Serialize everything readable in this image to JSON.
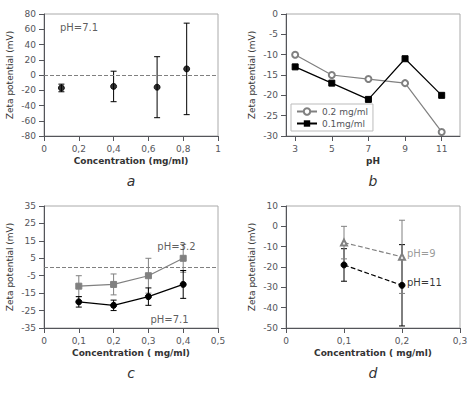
{
  "chart_data": [
    {
      "type": "scatter",
      "title": "a",
      "xlabel": "Concentration (mg/ml)",
      "ylabel": "Zeta potential (mV)",
      "x": [
        0.1,
        0.4,
        0.65,
        0.82
      ],
      "series": [
        {
          "values": [
            -17,
            -15,
            -16,
            8
          ],
          "yerr": [
            5,
            20,
            40,
            60
          ],
          "color": "black",
          "marker": "circle",
          "line_style": "none"
        }
      ],
      "xlim": [
        0,
        1
      ],
      "xticks": [
        0,
        {
          "value": 0.2,
          "label": "0,2"
        },
        {
          "value": 0.4,
          "label": "0,4"
        },
        {
          "value": 0.6,
          "label": "0,6"
        },
        {
          "value": 0.8,
          "label": "0,8"
        },
        1
      ],
      "ylim": [
        -80,
        80
      ],
      "yticks": [
        -80,
        -60,
        -40,
        -20,
        0,
        20,
        40,
        60,
        80
      ],
      "hlines": [
        0
      ],
      "annotations": [
        {
          "text": "pH=7.1",
          "x": 0.08,
          "y": 62
        }
      ],
      "grid": false
    },
    {
      "type": "line",
      "title": "b",
      "xlabel": "pH",
      "ylabel": "Zeta potential (mV)",
      "x": [
        3,
        5,
        7,
        9,
        11
      ],
      "series": [
        {
          "name": "0.2 mg/ml",
          "values": [
            -10,
            -15,
            -16,
            -17,
            -29
          ],
          "color": "gray",
          "marker": "open_circle",
          "line_style": "solid"
        },
        {
          "name": "0.1mg/ml",
          "values": [
            -13,
            -17,
            -21,
            -11,
            -20
          ],
          "color": "black",
          "marker": "square",
          "line_style": "solid"
        }
      ],
      "xlim": [
        2.5,
        12
      ],
      "xticks": [
        3,
        5,
        7,
        9,
        11
      ],
      "ylim": [
        -30,
        0
      ],
      "yticks": [
        0,
        -5,
        -10,
        -15,
        -20,
        -25,
        -30
      ],
      "legend": "lower left",
      "grid": false
    },
    {
      "type": "line",
      "title": "c",
      "xlabel": "Concentration ( mg/ml)",
      "ylabel": "Zeta potential (mV)",
      "x": [
        0.1,
        0.2,
        0.3,
        0.4
      ],
      "series": [
        {
          "values": [
            -11,
            -10,
            -5,
            5
          ],
          "yerr": [
            6,
            6,
            10,
            8
          ],
          "color": "gray",
          "marker": "square",
          "line_style": "solid"
        },
        {
          "values": [
            -20,
            -22,
            -17,
            -10
          ],
          "yerr": [
            3,
            3,
            5,
            8
          ],
          "color": "black",
          "marker": "circle",
          "line_style": "solid"
        }
      ],
      "xlim": [
        0,
        0.5
      ],
      "xticks": [
        0,
        {
          "value": 0.1,
          "label": "0,1"
        },
        {
          "value": 0.2,
          "label": "0,2"
        },
        {
          "value": 0.3,
          "label": "0,3"
        },
        {
          "value": 0.4,
          "label": "0,4"
        },
        {
          "value": 0.5,
          "label": "0,5"
        }
      ],
      "ylim": [
        -35,
        35
      ],
      "yticks": [
        -35,
        -25,
        -15,
        -5,
        5,
        15,
        25,
        35
      ],
      "hlines": [
        0
      ],
      "annotations": [
        {
          "text": "pH=3.2",
          "x": 0.32,
          "y": 12
        },
        {
          "text": "pH=7.1",
          "x": 0.3,
          "y": -30
        }
      ],
      "grid": false
    },
    {
      "type": "line",
      "title": "d",
      "xlabel": "Concentration ( mg/ml)",
      "ylabel": "Zeta potential (mV)",
      "x": [
        0.1,
        0.2
      ],
      "series": [
        {
          "values": [
            -19,
            -29
          ],
          "yerr_low": [
            8,
            20
          ],
          "yerr_high": [
            8,
            20
          ],
          "color": "black",
          "marker": "circle",
          "line_style": "dashed"
        },
        {
          "values": [
            -8,
            -15
          ],
          "yerr_low": [
            8,
            18
          ],
          "yerr_high": [
            8,
            18
          ],
          "color": "gray",
          "marker": "open_triangle",
          "line_style": "dashed"
        }
      ],
      "xlim": [
        0,
        0.3
      ],
      "xticks": [
        0,
        {
          "value": 0.1,
          "label": "0,1"
        },
        {
          "value": 0.2,
          "label": "0,2"
        },
        {
          "value": 0.3,
          "label": "0,3"
        }
      ],
      "ylim": [
        -50,
        10
      ],
      "yticks": [
        10,
        0,
        -10,
        -20,
        -30,
        -40,
        -50
      ],
      "annotations": [
        {
          "text": "pH=11",
          "x": 0.205,
          "y": -27.5,
          "color": "black"
        },
        {
          "text": "pH=9",
          "x": 0.205,
          "y": -13.5,
          "color": "gray"
        }
      ],
      "grid": false
    }
  ]
}
